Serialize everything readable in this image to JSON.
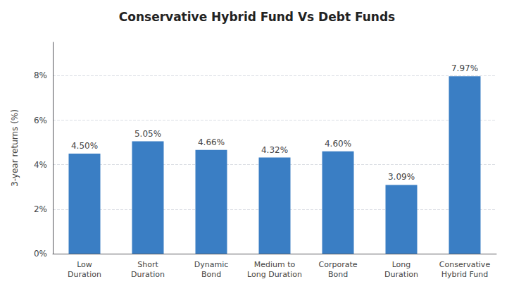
{
  "chart_data": {
    "type": "bar",
    "title": "Conservative Hybrid Fund Vs Debt Funds",
    "ylabel": "3-year returns (%)",
    "categories": [
      "Low\nDuration",
      "Short\nDuration",
      "Dynamic\nBond",
      "Medium to\nLong Duration",
      "Corporate\nBond",
      "Long\nDuration",
      "Conservative\nHybrid Fund"
    ],
    "values": [
      4.5,
      5.05,
      4.66,
      4.32,
      4.6,
      3.09,
      7.97
    ],
    "value_labels": [
      "4.50%",
      "5.05%",
      "4.66%",
      "4.32%",
      "4.60%",
      "3.09%",
      "7.97%"
    ],
    "data_labels": true,
    "color": "#3a7ec4",
    "ylim": [
      0,
      9.5
    ],
    "yticks": [
      {
        "value": 0,
        "label": "0%"
      },
      {
        "value": 2,
        "label": "2%"
      },
      {
        "value": 4,
        "label": "4%"
      },
      {
        "value": 6,
        "label": "6%"
      },
      {
        "value": 8,
        "label": "8%"
      }
    ],
    "grid": true
  }
}
